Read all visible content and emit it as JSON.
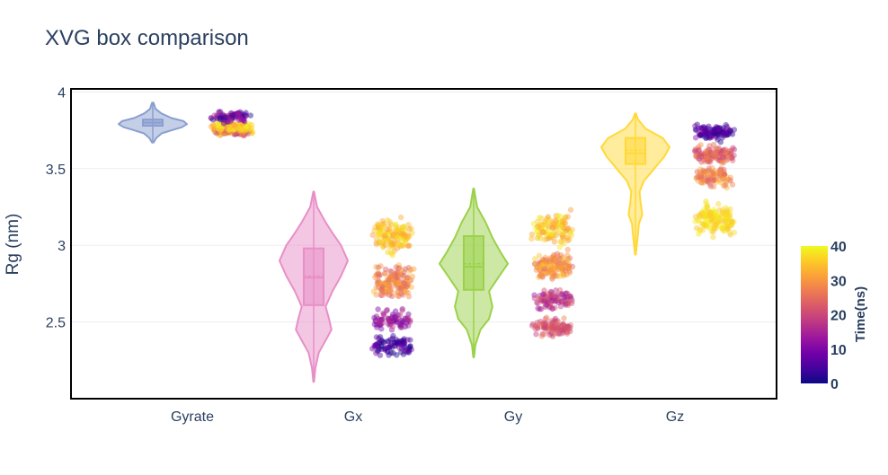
{
  "chart_data": {
    "type": "violin",
    "title": "XVG box comparison",
    "xlabel": "",
    "ylabel": "Rg (nm)",
    "ylim": [
      2.0,
      4.02
    ],
    "yticks": [
      2.5,
      3,
      3.5,
      4
    ],
    "ytick_labels": [
      "2.5",
      "3",
      "3.5",
      "4"
    ],
    "grid": true,
    "categories": [
      "Gyrate",
      "Gx",
      "Gy",
      "Gz"
    ],
    "series": [
      {
        "color": "#8a9fd0",
        "violin_profile": [
          [
            3.67,
            0.02
          ],
          [
            3.7,
            0.1
          ],
          [
            3.73,
            0.26
          ],
          [
            3.75,
            0.55
          ],
          [
            3.77,
            0.85
          ],
          [
            3.79,
            1.0
          ],
          [
            3.81,
            0.9
          ],
          [
            3.83,
            0.55
          ],
          [
            3.86,
            0.25
          ],
          [
            3.89,
            0.08
          ],
          [
            3.93,
            0.02
          ]
        ],
        "box": {
          "q1": 3.78,
          "median": 3.8,
          "q3": 3.82,
          "mean": 3.8
        },
        "points": {
          "min": 3.7,
          "max": 3.91,
          "groups": [
            {
              "lo": 3.7,
              "hi": 3.78,
              "time": [
                10,
                40
              ],
              "n": 90
            },
            {
              "lo": 3.73,
              "hi": 3.82,
              "time": [
                30,
                40
              ],
              "n": 120
            },
            {
              "lo": 3.78,
              "hi": 3.9,
              "time": [
                0,
                18
              ],
              "n": 80
            }
          ]
        }
      },
      {
        "color": "#e88fc7",
        "violin_profile": [
          [
            2.11,
            0.01
          ],
          [
            2.2,
            0.05
          ],
          [
            2.3,
            0.15
          ],
          [
            2.38,
            0.35
          ],
          [
            2.45,
            0.52
          ],
          [
            2.52,
            0.45
          ],
          [
            2.6,
            0.35
          ],
          [
            2.7,
            0.55
          ],
          [
            2.8,
            0.8
          ],
          [
            2.9,
            1.0
          ],
          [
            3.0,
            0.8
          ],
          [
            3.08,
            0.55
          ],
          [
            3.15,
            0.35
          ],
          [
            3.25,
            0.1
          ],
          [
            3.35,
            0.01
          ]
        ],
        "box": {
          "q1": 2.61,
          "median": 2.79,
          "q3": 2.98,
          "mean": 2.8
        },
        "points": {
          "min": 2.22,
          "max": 3.24,
          "groups": [
            {
              "lo": 2.22,
              "hi": 2.45,
              "time": [
                0,
                10
              ],
              "n": 90
            },
            {
              "lo": 2.4,
              "hi": 2.62,
              "time": [
                8,
                20
              ],
              "n": 80
            },
            {
              "lo": 2.6,
              "hi": 2.92,
              "time": [
                22,
                34
              ],
              "n": 150
            },
            {
              "lo": 2.88,
              "hi": 3.24,
              "time": [
                30,
                40
              ],
              "n": 150
            }
          ]
        }
      },
      {
        "color": "#9bd14a",
        "violin_profile": [
          [
            2.27,
            0.01
          ],
          [
            2.35,
            0.05
          ],
          [
            2.45,
            0.2
          ],
          [
            2.52,
            0.45
          ],
          [
            2.6,
            0.55
          ],
          [
            2.7,
            0.45
          ],
          [
            2.8,
            0.75
          ],
          [
            2.88,
            1.0
          ],
          [
            2.95,
            0.8
          ],
          [
            3.05,
            0.55
          ],
          [
            3.15,
            0.35
          ],
          [
            3.25,
            0.1
          ],
          [
            3.37,
            0.01
          ]
        ],
        "box": {
          "q1": 2.71,
          "median": 2.86,
          "q3": 3.06,
          "mean": 2.88
        },
        "points": {
          "min": 2.38,
          "max": 3.26,
          "groups": [
            {
              "lo": 2.38,
              "hi": 2.55,
              "time": [
                18,
                28
              ],
              "n": 110
            },
            {
              "lo": 2.55,
              "hi": 2.75,
              "time": [
                12,
                24
              ],
              "n": 90
            },
            {
              "lo": 2.72,
              "hi": 3.0,
              "time": [
                24,
                36
              ],
              "n": 140
            },
            {
              "lo": 2.95,
              "hi": 3.26,
              "time": [
                30,
                40
              ],
              "n": 120
            }
          ]
        }
      },
      {
        "color": "#ffd93a",
        "violin_profile": [
          [
            2.94,
            0.01
          ],
          [
            3.0,
            0.04
          ],
          [
            3.08,
            0.08
          ],
          [
            3.14,
            0.1
          ],
          [
            3.2,
            0.2
          ],
          [
            3.28,
            0.15
          ],
          [
            3.35,
            0.12
          ],
          [
            3.42,
            0.25
          ],
          [
            3.5,
            0.55
          ],
          [
            3.58,
            0.85
          ],
          [
            3.64,
            1.0
          ],
          [
            3.7,
            0.8
          ],
          [
            3.76,
            0.3
          ],
          [
            3.82,
            0.08
          ],
          [
            3.86,
            0.01
          ]
        ],
        "box": {
          "q1": 3.53,
          "median": 3.6,
          "q3": 3.7,
          "mean": 3.62
        },
        "points": {
          "min": 3.01,
          "max": 3.81,
          "groups": [
            {
              "lo": 3.01,
              "hi": 3.32,
              "time": [
                34,
                40
              ],
              "n": 150
            },
            {
              "lo": 3.35,
              "hi": 3.55,
              "time": [
                22,
                34
              ],
              "n": 90
            },
            {
              "lo": 3.5,
              "hi": 3.68,
              "time": [
                18,
                30
              ],
              "n": 120
            },
            {
              "lo": 3.66,
              "hi": 3.81,
              "time": [
                0,
                12
              ],
              "n": 110
            }
          ]
        }
      }
    ],
    "colorbar": {
      "title": "Time(ns)",
      "range": [
        0,
        40
      ],
      "ticks": [
        "0",
        "10",
        "20",
        "30",
        "40"
      ],
      "colors": [
        "#0d0887",
        "#46039f",
        "#7201a8",
        "#9c179e",
        "#bd3786",
        "#d8576b",
        "#ed7953",
        "#fb9f3a",
        "#fdca26",
        "#f0f921"
      ]
    }
  }
}
